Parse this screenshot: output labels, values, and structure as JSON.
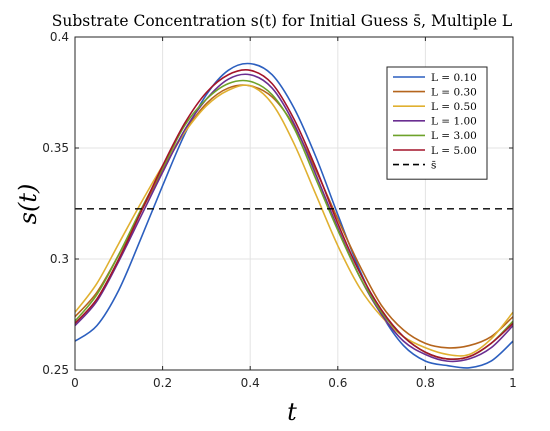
{
  "chart_data": {
    "type": "line",
    "title": "Substrate Concentration s(t) for Initial Guess s̄, Multiple L",
    "xlabel": "t",
    "ylabel": "s(t)",
    "xlim": [
      0,
      1
    ],
    "ylim": [
      0.25,
      0.4
    ],
    "xticks": [
      0,
      0.2,
      0.4,
      0.6,
      0.8,
      1
    ],
    "xtick_labels": [
      "0",
      "0.2",
      "0.4",
      "0.6",
      "0.8",
      "1"
    ],
    "yticks": [
      0.25,
      0.3,
      0.35,
      0.4
    ],
    "ytick_labels": [
      "0.25",
      "0.3",
      "0.35",
      "0.4"
    ],
    "grid": true,
    "legend_position": "top-right",
    "x": [
      0,
      0.05,
      0.1,
      0.15,
      0.2,
      0.25,
      0.3,
      0.35,
      0.4,
      0.45,
      0.5,
      0.55,
      0.6,
      0.65,
      0.7,
      0.75,
      0.8,
      0.85,
      0.9,
      0.95,
      1
    ],
    "series": [
      {
        "name": "L = 0.10",
        "color": "#2c5fbf",
        "dash": "solid",
        "values": [
          0.263,
          0.27,
          0.286,
          0.309,
          0.333,
          0.356,
          0.374,
          0.385,
          0.388,
          0.383,
          0.368,
          0.346,
          0.32,
          0.295,
          0.275,
          0.261,
          0.254,
          0.252,
          0.251,
          0.254,
          0.263
        ]
      },
      {
        "name": "L = 0.30",
        "color": "#b5651d",
        "dash": "solid",
        "values": [
          0.274,
          0.285,
          0.302,
          0.321,
          0.34,
          0.357,
          0.37,
          0.377,
          0.378,
          0.373,
          0.36,
          0.34,
          0.318,
          0.297,
          0.279,
          0.268,
          0.262,
          0.26,
          0.261,
          0.265,
          0.274
        ]
      },
      {
        "name": "L = 0.50",
        "color": "#e0b030",
        "dash": "solid",
        "values": [
          0.276,
          0.289,
          0.307,
          0.325,
          0.342,
          0.357,
          0.369,
          0.376,
          0.378,
          0.37,
          0.352,
          0.329,
          0.306,
          0.287,
          0.274,
          0.265,
          0.26,
          0.257,
          0.257,
          0.264,
          0.276
        ]
      },
      {
        "name": "L = 1.00",
        "color": "#6a2e91",
        "dash": "solid",
        "values": [
          0.27,
          0.281,
          0.299,
          0.319,
          0.339,
          0.358,
          0.372,
          0.381,
          0.383,
          0.377,
          0.361,
          0.338,
          0.314,
          0.292,
          0.275,
          0.263,
          0.257,
          0.254,
          0.255,
          0.26,
          0.27
        ]
      },
      {
        "name": "L = 3.00",
        "color": "#6ea22a",
        "dash": "solid",
        "values": [
          0.272,
          0.284,
          0.302,
          0.322,
          0.341,
          0.36,
          0.372,
          0.379,
          0.38,
          0.374,
          0.359,
          0.336,
          0.313,
          0.292,
          0.276,
          0.265,
          0.258,
          0.255,
          0.256,
          0.262,
          0.272
        ]
      },
      {
        "name": "L = 5.00",
        "color": "#a3142a",
        "dash": "solid",
        "values": [
          0.271,
          0.282,
          0.3,
          0.321,
          0.342,
          0.361,
          0.375,
          0.383,
          0.385,
          0.379,
          0.363,
          0.341,
          0.316,
          0.294,
          0.277,
          0.265,
          0.258,
          0.255,
          0.256,
          0.262,
          0.271
        ]
      },
      {
        "name": "s̄",
        "color": "#000000",
        "dash": "dashed",
        "values": [
          0.3226,
          0.3226,
          0.3226,
          0.3226,
          0.3226,
          0.3226,
          0.3226,
          0.3226,
          0.3226,
          0.3226,
          0.3226,
          0.3226,
          0.3226,
          0.3226,
          0.3226,
          0.3226,
          0.3226,
          0.3226,
          0.3226,
          0.3226,
          0.3226
        ]
      }
    ]
  }
}
